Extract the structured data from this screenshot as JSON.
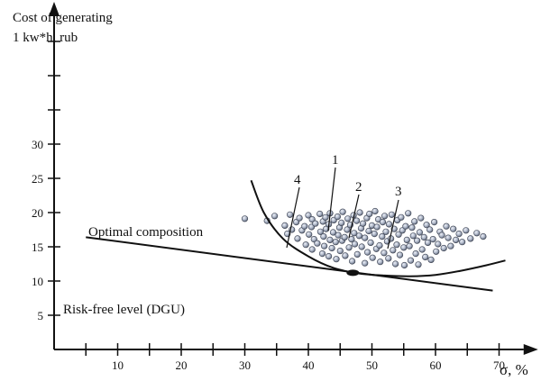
{
  "chart_data": {
    "type": "scatter",
    "ylabel_lines": [
      "Cost of generating",
      "1 kw*h, rub"
    ],
    "xlabel": "σ, %",
    "x_ticks": [
      10,
      20,
      30,
      40,
      50,
      60,
      70
    ],
    "y_ticks": [
      5,
      10,
      15,
      20,
      25,
      30
    ],
    "xlim": [
      0,
      75
    ],
    "ylim": [
      0,
      50
    ],
    "annotations": {
      "optimal": "Optimal composition",
      "risk_free": "Risk-free level (DGU)",
      "labels": [
        "1",
        "2",
        "3",
        "4"
      ]
    },
    "lines": {
      "capital_market_line": [
        [
          5,
          16.4
        ],
        [
          69,
          8.6
        ]
      ],
      "efficient_frontier": [
        [
          31,
          24.7
        ],
        [
          33,
          20.0
        ],
        [
          36,
          16.2
        ],
        [
          40,
          13.6
        ],
        [
          44,
          11.9
        ],
        [
          48,
          11.1
        ],
        [
          52,
          10.8
        ],
        [
          56,
          10.7
        ],
        [
          60,
          10.9
        ],
        [
          64,
          11.5
        ],
        [
          68,
          12.3
        ],
        [
          71,
          13.0
        ]
      ],
      "tangent_point": [
        47,
        11.2
      ]
    },
    "series": [
      {
        "x": [
          30.0,
          33.5,
          34.7,
          36.3,
          36.7,
          37.1,
          37.4,
          38.1,
          38.3,
          38.6,
          39.0,
          39.4,
          39.6,
          40.0,
          40.1,
          40.5,
          40.6,
          40.6,
          40.9,
          41.1,
          41.4,
          41.8,
          41.9,
          42.2,
          42.3,
          42.4,
          42.5,
          42.7,
          42.8,
          43.2,
          43.2,
          43.4,
          43.4,
          43.7,
          43.9,
          44.0,
          44.3,
          44.4,
          44.6,
          44.7,
          44.9,
          45.0,
          45.2,
          45.3,
          45.4,
          45.7,
          45.8,
          46.1,
          46.2,
          46.4,
          46.6,
          46.8,
          46.9,
          47.1,
          47.2,
          47.3,
          47.6,
          47.7,
          48.0,
          48.1,
          48.3,
          48.4,
          48.6,
          48.9,
          48.9,
          49.2,
          49.3,
          49.5,
          49.6,
          49.8,
          50.0,
          50.1,
          50.4,
          50.5,
          50.7,
          50.8,
          51.0,
          51.2,
          51.3,
          51.6,
          51.7,
          51.9,
          52.0,
          52.2,
          52.4,
          52.6,
          52.7,
          53.0,
          53.1,
          53.3,
          53.5,
          53.7,
          53.9,
          54.0,
          54.2,
          54.4,
          54.6,
          54.8,
          55.0,
          55.1,
          55.3,
          55.5,
          55.7,
          55.9,
          56.1,
          56.3,
          56.5,
          56.7,
          56.9,
          57.1,
          57.3,
          57.5,
          57.7,
          57.9,
          58.2,
          58.4,
          58.6,
          58.8,
          59.1,
          59.3,
          59.6,
          59.8,
          60.1,
          60.4,
          60.7,
          61.0,
          61.3,
          61.7,
          62.0,
          62.4,
          62.8,
          63.2,
          63.7,
          64.2,
          64.8,
          65.5,
          66.5,
          67.5
        ],
        "y": [
          19.1,
          18.8,
          19.5,
          18.1,
          16.9,
          19.7,
          17.5,
          18.6,
          16.2,
          19.2,
          17.4,
          18.0,
          15.3,
          19.6,
          16.8,
          17.9,
          14.6,
          19.0,
          16.1,
          18.4,
          15.5,
          19.8,
          17.2,
          14.0,
          18.7,
          16.5,
          15.1,
          19.3,
          17.6,
          13.6,
          18.3,
          16.0,
          19.9,
          14.8,
          17.1,
          18.9,
          15.7,
          13.2,
          19.4,
          16.7,
          17.8,
          14.4,
          18.5,
          15.9,
          20.1,
          16.4,
          13.7,
          17.5,
          19.1,
          14.9,
          18.2,
          16.1,
          12.9,
          19.6,
          17.0,
          15.4,
          18.8,
          13.9,
          16.6,
          20.0,
          17.7,
          15.0,
          18.4,
          12.6,
          16.3,
          19.2,
          14.2,
          17.3,
          19.8,
          15.6,
          18.1,
          13.4,
          16.9,
          20.2,
          14.7,
          17.9,
          19.0,
          15.2,
          12.8,
          16.5,
          18.6,
          14.1,
          19.5,
          17.2,
          15.8,
          13.3,
          18.3,
          16.2,
          19.7,
          14.5,
          17.6,
          12.5,
          15.3,
          18.9,
          16.8,
          13.8,
          19.3,
          17.4,
          14.9,
          12.3,
          18.0,
          16.0,
          19.9,
          15.1,
          13.0,
          17.8,
          16.6,
          18.7,
          14.0,
          15.9,
          12.4,
          17.1,
          19.2,
          14.6,
          16.4,
          13.5,
          18.2,
          15.6,
          17.5,
          13.1,
          16.1,
          18.6,
          14.3,
          15.4,
          17.2,
          16.7,
          14.8,
          18.0,
          16.3,
          15.1,
          17.6,
          16.0,
          16.9,
          15.7,
          17.4,
          16.2,
          17.0,
          16.5
        ]
      }
    ]
  }
}
